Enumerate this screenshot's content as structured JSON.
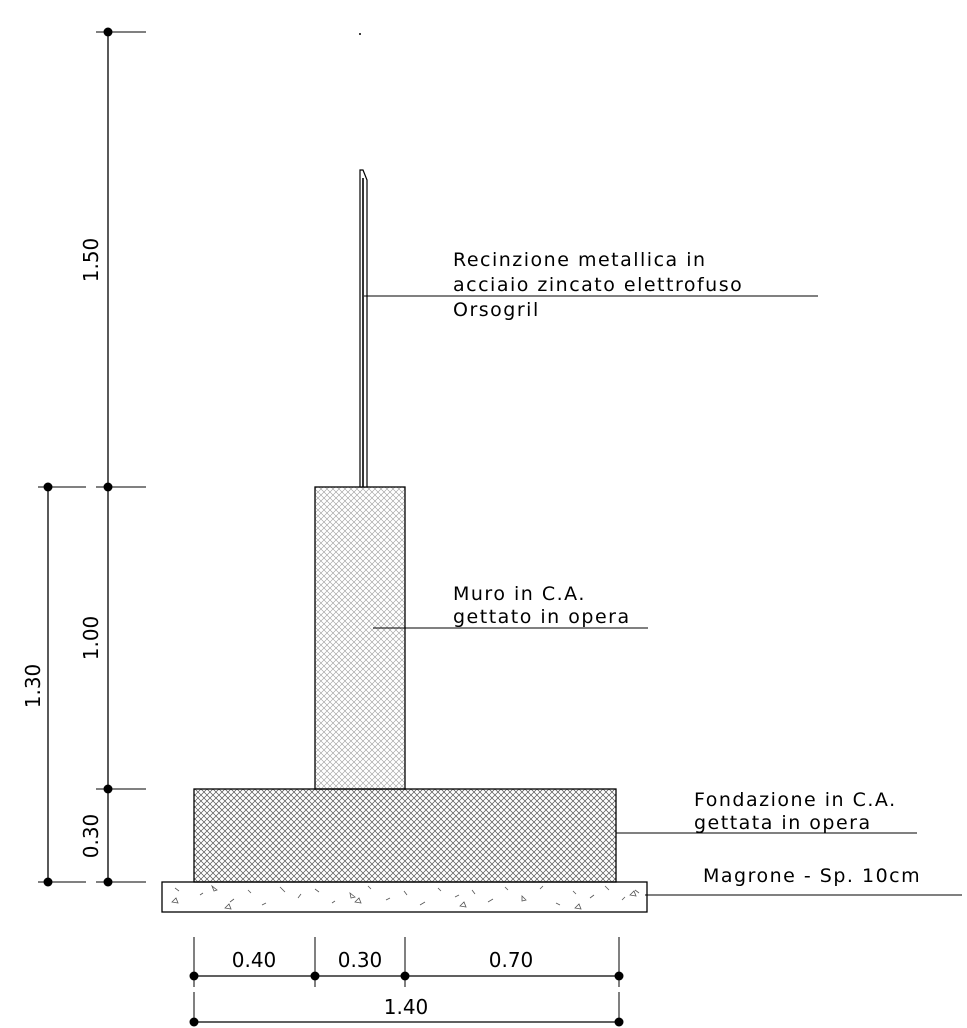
{
  "labels": {
    "fence": [
      "Recinzione metallica in",
      "acciaio zincato elettrofuso",
      "Orsogril"
    ],
    "wall": [
      "Muro in C.A.",
      "gettato in opera"
    ],
    "foundation": [
      "Fondazione in C.A.",
      "gettata in opera"
    ],
    "blinding": "Magrone - Sp. 10cm"
  },
  "dimensions": {
    "vertical_inner": [
      "1.50",
      "1.00",
      "0.30"
    ],
    "vertical_outer": "1.30",
    "horizontal_parts": [
      "0.40",
      "0.30",
      "0.70"
    ],
    "horizontal_total": "1.40"
  }
}
